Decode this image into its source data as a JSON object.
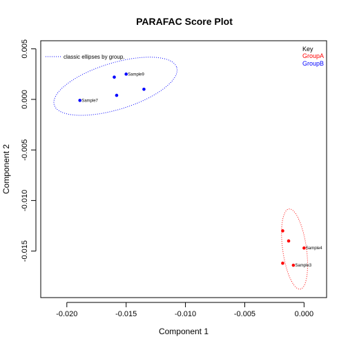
{
  "chart_data": {
    "type": "scatter",
    "title": "PARAFAC Score Plot",
    "xlabel": "Component 1",
    "ylabel": "Component 2",
    "xlim": [
      -0.0222,
      0.0019
    ],
    "ylim": [
      -0.0196,
      0.0058
    ],
    "x_ticks": [
      -0.02,
      -0.015,
      -0.01,
      -0.005,
      0.0
    ],
    "x_tick_labels": [
      "-0.020",
      "-0.015",
      "-0.010",
      "-0.005",
      "0.000"
    ],
    "y_ticks": [
      -0.015,
      -0.01,
      -0.005,
      0.0,
      0.005
    ],
    "y_tick_labels": [
      "-0.015",
      "-0.010",
      "-0.005",
      "0.000",
      "0.005"
    ],
    "grid": false,
    "series": [
      {
        "name": "GroupA",
        "color": "#ff0000",
        "points": [
          {
            "x": -0.0018,
            "y": -0.013,
            "label": ""
          },
          {
            "x": -0.0013,
            "y": -0.014,
            "label": ""
          },
          {
            "x": 0.0,
            "y": -0.0147,
            "label": "Sample4"
          },
          {
            "x": -0.0018,
            "y": -0.0162,
            "label": ""
          },
          {
            "x": -0.0009,
            "y": -0.0164,
            "label": "Sample3"
          }
        ],
        "ellipse": {
          "cx": -0.0008,
          "cy": -0.0148,
          "rx": 0.001,
          "ry": 0.004,
          "angle_deg": -8
        }
      },
      {
        "name": "GroupB",
        "color": "#0000ff",
        "points": [
          {
            "x": -0.016,
            "y": 0.0022,
            "label": ""
          },
          {
            "x": -0.015,
            "y": 0.0025,
            "label": "Sample9"
          },
          {
            "x": -0.0135,
            "y": 0.001,
            "label": ""
          },
          {
            "x": -0.0158,
            "y": 0.0004,
            "label": ""
          },
          {
            "x": -0.0189,
            "y": -0.0001,
            "label": "Sample7"
          }
        ],
        "ellipse": {
          "cx": -0.0159,
          "cy": 0.0013,
          "rx": 0.0054,
          "ry": 0.0023,
          "angle_deg": -17
        }
      }
    ],
    "legend": {
      "placement": "top-left",
      "text": "classic ellipses by group."
    },
    "key": {
      "placement": "top-right",
      "title": "Key",
      "entries": [
        {
          "name": "GroupA",
          "color": "#ff0000"
        },
        {
          "name": "GroupB",
          "color": "#0000ff"
        }
      ]
    }
  }
}
